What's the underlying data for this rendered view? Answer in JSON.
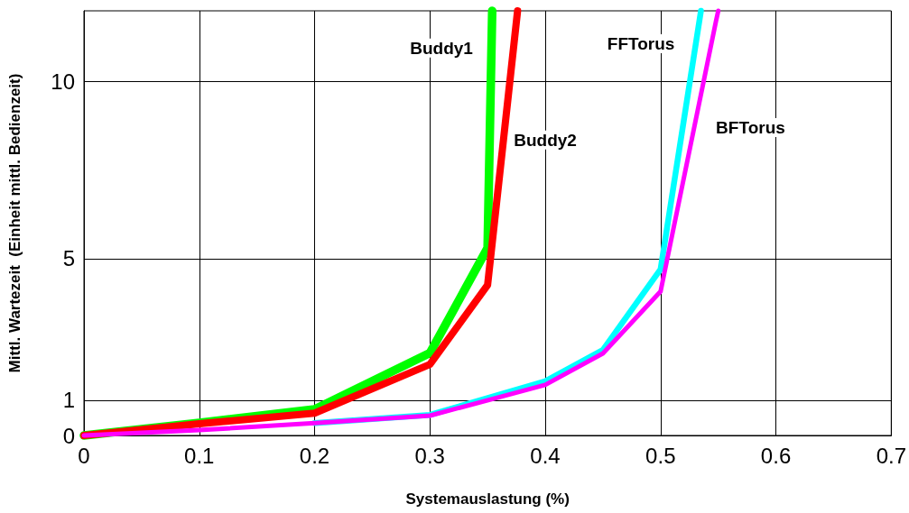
{
  "chart_data": {
    "type": "line",
    "xlabel": "Systemauslastung (%)",
    "ylabel": "Mittl. Wartezeit  (Einheit mittl. Bedienzeit)",
    "xlim": [
      0,
      0.7
    ],
    "xticks": [
      0,
      0.1,
      0.2,
      0.3,
      0.4,
      0.5,
      0.6,
      0.7
    ],
    "ylim": [
      0,
      12
    ],
    "yticks": [
      0,
      1,
      5,
      10
    ],
    "grid": true,
    "legend": false,
    "marker": "none",
    "line_style": "solid",
    "series": [
      {
        "name": "Buddy1",
        "color": "#00ff00",
        "x": [
          0,
          0.1,
          0.2,
          0.3,
          0.35,
          0.354
        ],
        "values": [
          0,
          0.36,
          0.74,
          2.33,
          5.3,
          12
        ]
      },
      {
        "name": "Buddy2",
        "color": "#ff0000",
        "x": [
          0,
          0.1,
          0.2,
          0.3,
          0.35,
          0.376
        ],
        "values": [
          0,
          0.33,
          0.63,
          2.01,
          4.25,
          12
        ]
      },
      {
        "name": "FFTorus",
        "color": "#00ffff",
        "x": [
          0.2,
          0.3,
          0.4,
          0.45,
          0.5,
          0.535
        ],
        "values": [
          0.35,
          0.58,
          1.53,
          2.42,
          4.7,
          12
        ]
      },
      {
        "name": "BFTorus",
        "color": "#ff00ff",
        "x": [
          0,
          0.1,
          0.2,
          0.3,
          0.4,
          0.45,
          0.5,
          0.548,
          0.55
        ],
        "values": [
          0,
          0.15,
          0.35,
          0.56,
          1.43,
          2.32,
          4.07,
          11.7,
          12
        ]
      }
    ]
  }
}
